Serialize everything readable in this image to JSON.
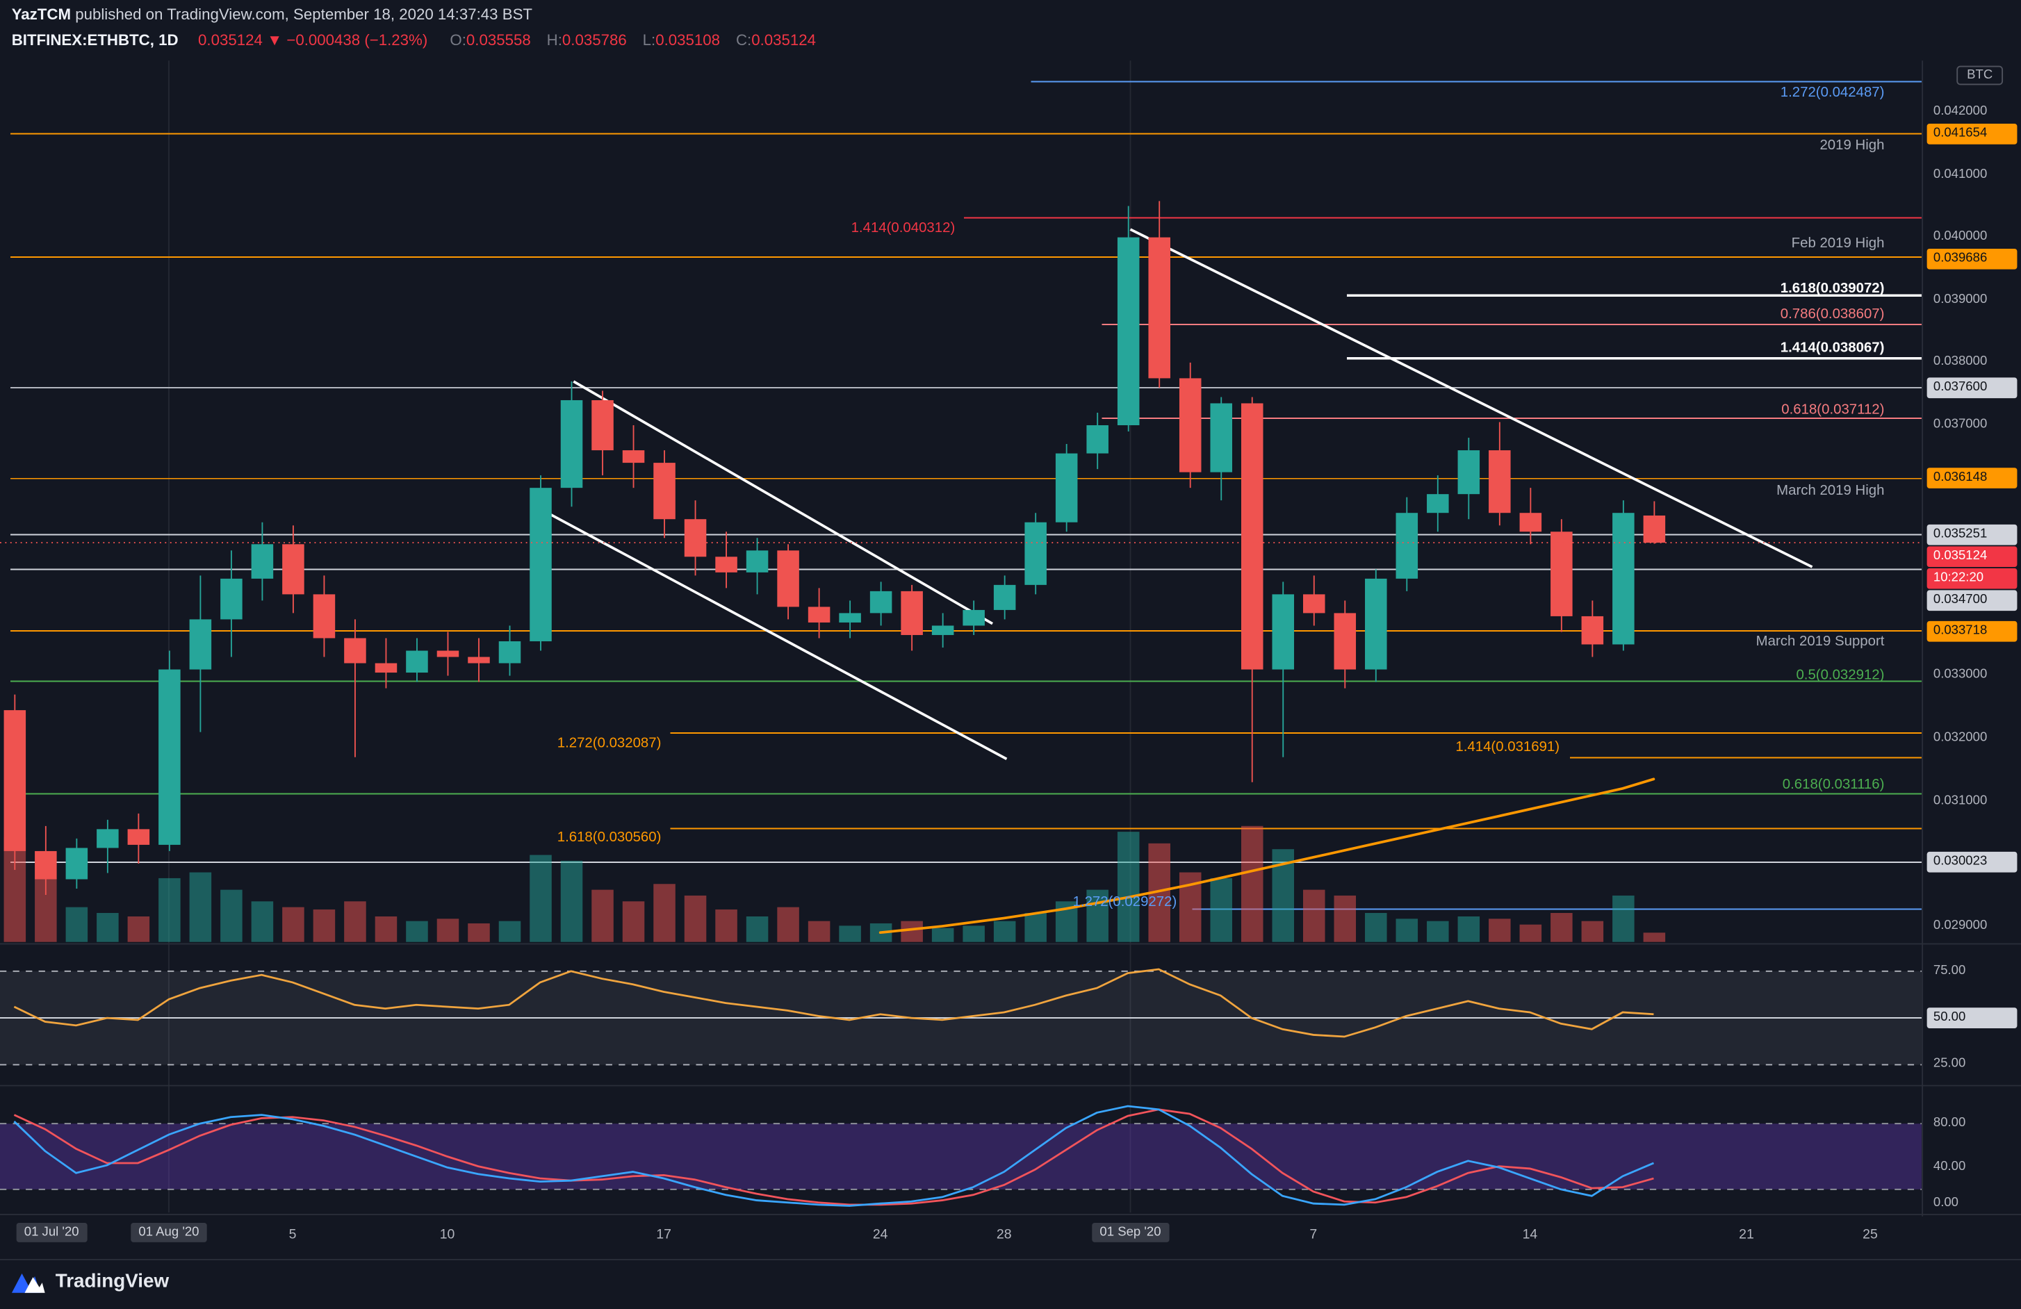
{
  "header": {
    "line1": {
      "author": "YazTCM",
      "rest": " published on TradingView.com, September 18, 2020 14:37:43 BST"
    },
    "line2": {
      "symbol": "BITFINEX:ETHBTC, 1D",
      "price": "0.035124",
      "arrow": "▼",
      "change": "−0.000438 (−1.23%)",
      "o_label": "O:",
      "o": "0.035558",
      "h_label": "H:",
      "h": "0.035786",
      "l_label": "L:",
      "l": "0.035108",
      "c_label": "C:",
      "c": "0.035124"
    }
  },
  "footer": {
    "brand": "TradingView"
  },
  "axis": {
    "currency": "BTC",
    "price_labels": [
      {
        "text": "0.042000",
        "price": 0.042,
        "style": "plain"
      },
      {
        "text": "0.041654",
        "price": 0.041654,
        "style": "orange"
      },
      {
        "text": "0.041000",
        "price": 0.041,
        "style": "plain"
      },
      {
        "text": "0.040000",
        "price": 0.04,
        "style": "plain"
      },
      {
        "text": "0.039686",
        "price": 0.039686,
        "style": "orange"
      },
      {
        "text": "0.039000",
        "price": 0.039,
        "style": "plain"
      },
      {
        "text": "0.038000",
        "price": 0.038,
        "style": "plain"
      },
      {
        "text": "0.037600",
        "price": 0.0376,
        "style": "white"
      },
      {
        "text": "0.037000",
        "price": 0.037,
        "style": "plain"
      },
      {
        "text": "0.036148",
        "price": 0.036148,
        "style": "orange"
      },
      {
        "text": "0.035251",
        "price": 0.035251,
        "style": "white"
      },
      {
        "text": "0.035124",
        "price": 0.035124,
        "style": "red"
      },
      {
        "text": "10:22:20",
        "price": 0.035124,
        "style": "red",
        "countdown": true
      },
      {
        "text": "0.034700",
        "price": 0.0347,
        "style": "white"
      },
      {
        "text": "0.033718",
        "price": 0.033718,
        "style": "orange"
      },
      {
        "text": "0.033000",
        "price": 0.033,
        "style": "plain"
      },
      {
        "text": "0.032000",
        "price": 0.032,
        "style": "plain"
      },
      {
        "text": "0.031000",
        "price": 0.031,
        "style": "plain"
      },
      {
        "text": "0.030023",
        "price": 0.030023,
        "style": "white"
      },
      {
        "text": "0.029000",
        "price": 0.029,
        "style": "plain"
      }
    ],
    "rsi_labels": [
      {
        "text": "75.00",
        "value": 75,
        "style": "plain"
      },
      {
        "text": "50.00",
        "value": 50,
        "style": "white"
      },
      {
        "text": "25.00",
        "value": 25,
        "style": "plain"
      }
    ],
    "stoch_labels": [
      {
        "text": "80.00",
        "value": 80,
        "style": "plain"
      },
      {
        "text": "40.00",
        "value": 40,
        "style": "plain"
      },
      {
        "text": "0.00",
        "value": 0,
        "style": "plain"
      }
    ],
    "time_labels": [
      {
        "text": "01 Jul '20",
        "x": 40,
        "month": true
      },
      {
        "text": "01 Aug '20",
        "x": 131,
        "month": true
      },
      {
        "text": "5",
        "x": 227
      },
      {
        "text": "10",
        "x": 347
      },
      {
        "text": "17",
        "x": 515
      },
      {
        "text": "24",
        "x": 683
      },
      {
        "text": "28",
        "x": 779
      },
      {
        "text": "01 Sep '20",
        "x": 877,
        "month": true
      },
      {
        "text": "7",
        "x": 1019
      },
      {
        "text": "14",
        "x": 1187
      },
      {
        "text": "21",
        "x": 1355
      },
      {
        "text": "25",
        "x": 1451
      }
    ]
  },
  "colors": {
    "background": "#131722",
    "pane_border": "#2a2e39",
    "up": "#26a69a",
    "down": "#ef5350",
    "vol_up": "rgba(38,166,154,0.5)",
    "vol_down": "rgba(239,83,80,0.5)",
    "accent_orange": "#ff9800",
    "fib_red": "#f23645",
    "fib_pink": "#f77c80",
    "fib_green": "#4caf50",
    "fib_blue": "#5b9cf6",
    "white_line": "#ffffff",
    "gray_label": "#a8adb8",
    "text_gray": "#b2b5be",
    "text_light": "#d1d4dc",
    "rsi_line": "#f0a43e",
    "rsi_band": "rgba(168,173,189,0.10)",
    "stoch_k": "#3aa6ff",
    "stoch_d": "#f2545b",
    "stoch_band": "rgba(103,58,183,0.38)",
    "month_badge_bg": "#363a45",
    "logo_blue": "#2962ff"
  },
  "chart_data": {
    "type": "candlestick",
    "symbol": "BITFINEX:ETHBTC",
    "interval": "1D",
    "ylabel": "Price (BTC)",
    "ylim": [
      0.02875,
      0.04285
    ],
    "grid": false,
    "candles": [
      [
        "2020-07-27",
        0.03245,
        0.0327,
        0.0299,
        0.0302,
        90
      ],
      [
        "2020-07-28",
        0.0302,
        0.0306,
        0.0295,
        0.02975,
        55
      ],
      [
        "2020-07-29",
        0.02975,
        0.0304,
        0.0296,
        0.03025,
        30
      ],
      [
        "2020-07-30",
        0.03025,
        0.0307,
        0.02985,
        0.03055,
        25
      ],
      [
        "2020-07-31",
        0.03055,
        0.0308,
        0.03,
        0.0303,
        22
      ],
      [
        "2020-08-01",
        0.0303,
        0.0334,
        0.0302,
        0.0331,
        55
      ],
      [
        "2020-08-02",
        0.0331,
        0.0346,
        0.0321,
        0.0339,
        60
      ],
      [
        "2020-08-03",
        0.0339,
        0.035,
        0.0333,
        0.03455,
        45
      ],
      [
        "2020-08-04",
        0.03455,
        0.03545,
        0.0342,
        0.0351,
        35
      ],
      [
        "2020-08-05",
        0.0351,
        0.0354,
        0.034,
        0.0343,
        30
      ],
      [
        "2020-08-06",
        0.0343,
        0.0346,
        0.0333,
        0.0336,
        28
      ],
      [
        "2020-08-07",
        0.0336,
        0.0339,
        0.0317,
        0.0332,
        35
      ],
      [
        "2020-08-08",
        0.0332,
        0.0336,
        0.0328,
        0.03305,
        22
      ],
      [
        "2020-08-09",
        0.03305,
        0.0336,
        0.0329,
        0.0334,
        18
      ],
      [
        "2020-08-10",
        0.0334,
        0.0337,
        0.033,
        0.0333,
        20
      ],
      [
        "2020-08-11",
        0.0333,
        0.0336,
        0.0329,
        0.0332,
        16
      ],
      [
        "2020-08-12",
        0.0332,
        0.0338,
        0.033,
        0.03355,
        18
      ],
      [
        "2020-08-13",
        0.03355,
        0.0362,
        0.0334,
        0.036,
        75
      ],
      [
        "2020-08-14",
        0.036,
        0.0377,
        0.0357,
        0.0374,
        70
      ],
      [
        "2020-08-15",
        0.0374,
        0.03755,
        0.0362,
        0.0366,
        45
      ],
      [
        "2020-08-16",
        0.0366,
        0.037,
        0.036,
        0.0364,
        35
      ],
      [
        "2020-08-17",
        0.0364,
        0.0366,
        0.0352,
        0.0355,
        50
      ],
      [
        "2020-08-18",
        0.0355,
        0.0358,
        0.0346,
        0.0349,
        40
      ],
      [
        "2020-08-19",
        0.0349,
        0.0353,
        0.0344,
        0.03465,
        28
      ],
      [
        "2020-08-20",
        0.03465,
        0.0352,
        0.0343,
        0.035,
        22
      ],
      [
        "2020-08-21",
        0.035,
        0.0351,
        0.0339,
        0.0341,
        30
      ],
      [
        "2020-08-22",
        0.0341,
        0.0344,
        0.0336,
        0.03385,
        18
      ],
      [
        "2020-08-23",
        0.03385,
        0.0342,
        0.0336,
        0.034,
        14
      ],
      [
        "2020-08-24",
        0.034,
        0.0345,
        0.0338,
        0.03435,
        16
      ],
      [
        "2020-08-25",
        0.03435,
        0.03445,
        0.0334,
        0.03365,
        18
      ],
      [
        "2020-08-26",
        0.03365,
        0.034,
        0.03345,
        0.0338,
        12
      ],
      [
        "2020-08-27",
        0.0338,
        0.0342,
        0.03365,
        0.03405,
        14
      ],
      [
        "2020-08-28",
        0.03405,
        0.0346,
        0.0339,
        0.03445,
        18
      ],
      [
        "2020-08-29",
        0.03445,
        0.0356,
        0.0343,
        0.03545,
        25
      ],
      [
        "2020-08-30",
        0.03545,
        0.0367,
        0.0353,
        0.03655,
        35
      ],
      [
        "2020-08-31",
        0.03655,
        0.0372,
        0.0363,
        0.037,
        45
      ],
      [
        "2020-09-01",
        0.037,
        0.0405,
        0.0369,
        0.04,
        95
      ],
      [
        "2020-09-02",
        0.04,
        0.04058,
        0.0376,
        0.03775,
        85
      ],
      [
        "2020-09-03",
        0.03775,
        0.038,
        0.036,
        0.03625,
        60
      ],
      [
        "2020-09-04",
        0.03625,
        0.03745,
        0.0358,
        0.03735,
        55
      ],
      [
        "2020-09-05",
        0.03735,
        0.03745,
        0.0313,
        0.0331,
        100
      ],
      [
        "2020-09-06",
        0.0331,
        0.0345,
        0.0317,
        0.0343,
        80
      ],
      [
        "2020-09-07",
        0.0343,
        0.0346,
        0.0338,
        0.034,
        45
      ],
      [
        "2020-09-08",
        0.034,
        0.0342,
        0.0328,
        0.0331,
        40
      ],
      [
        "2020-09-09",
        0.0331,
        0.0347,
        0.0329,
        0.03455,
        25
      ],
      [
        "2020-09-10",
        0.03455,
        0.03585,
        0.03435,
        0.0356,
        20
      ],
      [
        "2020-09-11",
        0.0356,
        0.0362,
        0.0353,
        0.0359,
        18
      ],
      [
        "2020-09-12",
        0.0359,
        0.0368,
        0.0355,
        0.0366,
        22
      ],
      [
        "2020-09-13",
        0.0366,
        0.03705,
        0.0354,
        0.0356,
        20
      ],
      [
        "2020-09-14",
        0.0356,
        0.036,
        0.0351,
        0.0353,
        15
      ],
      [
        "2020-09-15",
        0.0353,
        0.0355,
        0.0337,
        0.03395,
        25
      ],
      [
        "2020-09-16",
        0.03395,
        0.0342,
        0.0333,
        0.0335,
        18
      ],
      [
        "2020-09-17",
        0.0335,
        0.0358,
        0.0334,
        0.0356,
        40
      ],
      [
        "2020-09-18",
        0.035558,
        0.035786,
        0.035108,
        0.035124,
        8
      ]
    ],
    "indicators": {
      "rsi": [
        56,
        48,
        46,
        50,
        49,
        60,
        66,
        70,
        73,
        69,
        63,
        57,
        55,
        57,
        56,
        55,
        57,
        69,
        75,
        71,
        68,
        64,
        61,
        58,
        56,
        54,
        51,
        49,
        52,
        50,
        49,
        51,
        53,
        57,
        62,
        66,
        74,
        76,
        68,
        62,
        50,
        44,
        41,
        40,
        45,
        51,
        55,
        59,
        55,
        53,
        47,
        44,
        53,
        52
      ],
      "stoch_k": [
        82,
        55,
        35,
        42,
        56,
        70,
        80,
        86,
        88,
        84,
        78,
        70,
        60,
        50,
        40,
        34,
        30,
        27,
        28,
        32,
        36,
        30,
        22,
        15,
        10,
        8,
        6,
        5,
        7,
        9,
        13,
        22,
        36,
        56,
        76,
        90,
        96,
        93,
        78,
        58,
        34,
        14,
        7,
        6,
        11,
        22,
        36,
        46,
        40,
        30,
        20,
        14,
        32,
        44
      ],
      "stoch_d": [
        88,
        75,
        57,
        44,
        44,
        56,
        69,
        79,
        85,
        86,
        83,
        77,
        69,
        60,
        50,
        41,
        35,
        30,
        28,
        29,
        32,
        33,
        29,
        22,
        16,
        11,
        8,
        6,
        6,
        7,
        10,
        15,
        24,
        38,
        56,
        74,
        87,
        93,
        89,
        76,
        57,
        35,
        18,
        9,
        8,
        13,
        23,
        35,
        41,
        39,
        31,
        21,
        22,
        30
      ]
    },
    "ma": [
      [
        28,
        0.0289
      ],
      [
        30,
        0.029
      ],
      [
        32,
        0.02913
      ],
      [
        34,
        0.02928
      ],
      [
        36,
        0.02946
      ],
      [
        38,
        0.02966
      ],
      [
        40,
        0.02988
      ],
      [
        42,
        0.0301
      ],
      [
        44,
        0.03032
      ],
      [
        46,
        0.03054
      ],
      [
        48,
        0.03076
      ],
      [
        50,
        0.03098
      ],
      [
        52,
        0.0312
      ],
      [
        53,
        0.03135
      ]
    ],
    "levels": [
      {
        "p": 0.042487,
        "x1": 800,
        "x2": 1491,
        "color": "fib_blue",
        "w": 1
      },
      {
        "p": 0.041654,
        "x1": 8,
        "x2": 1491,
        "color": "accent_orange",
        "w": 1
      },
      {
        "p": 0.040312,
        "x1": 748,
        "x2": 1491,
        "color": "fib_red",
        "w": 1
      },
      {
        "p": 0.039686,
        "x1": 8,
        "x2": 1491,
        "color": "accent_orange",
        "w": 1
      },
      {
        "p": 0.039072,
        "x1": 1045,
        "x2": 1491,
        "color": "white_line",
        "w": 2
      },
      {
        "p": 0.038607,
        "x1": 855,
        "x2": 1491,
        "color": "fib_pink",
        "w": 1
      },
      {
        "p": 0.038067,
        "x1": 1045,
        "x2": 1491,
        "color": "white_line",
        "w": 2
      },
      {
        "p": 0.0376,
        "x1": 8,
        "x2": 1491,
        "color": "text_gray",
        "w": 1
      },
      {
        "p": 0.037112,
        "x1": 855,
        "x2": 1491,
        "color": "fib_pink",
        "w": 1
      },
      {
        "p": 0.036148,
        "x1": 8,
        "x2": 1491,
        "color": "accent_orange",
        "w": 1
      },
      {
        "p": 0.035251,
        "x1": 8,
        "x2": 1491,
        "color": "text_light",
        "w": 1
      },
      {
        "p": 0.0347,
        "x1": 8,
        "x2": 1491,
        "color": "text_light",
        "w": 1
      },
      {
        "p": 0.033718,
        "x1": 8,
        "x2": 1491,
        "color": "accent_orange",
        "w": 1
      },
      {
        "p": 0.032912,
        "x1": 8,
        "x2": 1491,
        "color": "fib_green",
        "w": 1
      },
      {
        "p": 0.032087,
        "x1": 520,
        "x2": 1491,
        "color": "accent_orange",
        "w": 1
      },
      {
        "p": 0.031691,
        "x1": 1218,
        "x2": 1491,
        "color": "accent_orange",
        "w": 1
      },
      {
        "p": 0.031116,
        "x1": 8,
        "x2": 1491,
        "color": "fib_green",
        "w": 1
      },
      {
        "p": 0.03056,
        "x1": 520,
        "x2": 1491,
        "color": "accent_orange",
        "w": 1
      },
      {
        "p": 0.030023,
        "x1": 8,
        "x2": 1491,
        "color": "text_light",
        "w": 1
      },
      {
        "p": 0.029272,
        "x1": 925,
        "x2": 1491,
        "color": "fib_blue",
        "w": 1
      }
    ],
    "current_price_line": {
      "p": 0.035124,
      "color": "down"
    },
    "trendlines": [
      {
        "x1": 445,
        "y1": 296,
        "x2": 770,
        "y2": 484
      },
      {
        "x1": 421,
        "y1": 396,
        "x2": 781,
        "y2": 589
      },
      {
        "x1": 877,
        "y1": 178,
        "x2": 1406,
        "y2": 440
      }
    ],
    "annotations": [
      {
        "text": "1.272(0.042487)",
        "x": 1462,
        "y": 71,
        "color": "fib_blue",
        "anchor": "end"
      },
      {
        "text": "2019 High",
        "x": 1462,
        "y": 112,
        "color": "gray_label",
        "anchor": "end"
      },
      {
        "text": "1.414(0.040312)",
        "x": 741,
        "y": 176,
        "color": "fib_red",
        "anchor": "end"
      },
      {
        "text": "Feb 2019 High",
        "x": 1462,
        "y": 188,
        "color": "gray_label",
        "anchor": "end"
      },
      {
        "text": "1.618(0.039072)",
        "x": 1462,
        "y": 223,
        "color": "white_line",
        "anchor": "end",
        "bold": true
      },
      {
        "text": "0.786(0.038607)",
        "x": 1462,
        "y": 243,
        "color": "fib_pink",
        "anchor": "end"
      },
      {
        "text": "1.414(0.038067)",
        "x": 1462,
        "y": 269,
        "color": "white_line",
        "anchor": "end",
        "bold": true
      },
      {
        "text": "0.618(0.037112)",
        "x": 1462,
        "y": 317,
        "color": "fib_pink",
        "anchor": "end"
      },
      {
        "text": "March 2019 High",
        "x": 1462,
        "y": 380,
        "color": "gray_label",
        "anchor": "end"
      },
      {
        "text": "March 2019 Support",
        "x": 1462,
        "y": 497,
        "color": "gray_label",
        "anchor": "end"
      },
      {
        "text": "0.5(0.032912)",
        "x": 1462,
        "y": 523,
        "color": "fib_green",
        "anchor": "end"
      },
      {
        "text": "1.272(0.032087)",
        "x": 513,
        "y": 576,
        "color": "accent_orange",
        "anchor": "end"
      },
      {
        "text": "1.414(0.031691)",
        "x": 1210,
        "y": 579,
        "color": "accent_orange",
        "anchor": "end"
      },
      {
        "text": "0.618(0.031116)",
        "x": 1462,
        "y": 608,
        "color": "fib_green",
        "anchor": "end"
      },
      {
        "text": "1.618(0.030560)",
        "x": 513,
        "y": 649,
        "color": "accent_orange",
        "anchor": "end"
      },
      {
        "text": "1.272(0.029272)",
        "x": 913,
        "y": 699,
        "color": "fib_blue",
        "anchor": "end"
      }
    ],
    "month_gridlines": [
      131,
      877
    ]
  }
}
